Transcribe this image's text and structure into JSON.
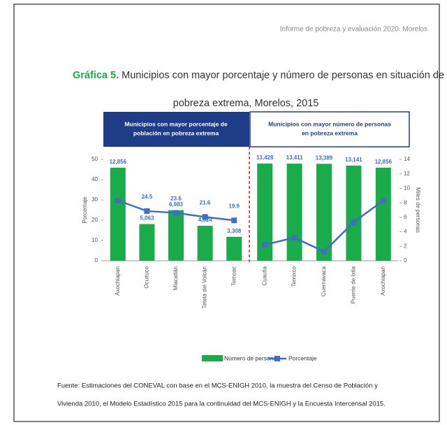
{
  "header": "Informe de pobreza y evaluación 2020. Morelos",
  "title": {
    "label": "Gráfica 5.",
    "lines": [
      "Municipios con mayor porcentaje y número de personas en situación de",
      "pobreza extrema, Morelos, 2015"
    ]
  },
  "source": [
    "Fuente: Estimaciones del CONEVAL con base en el MCS-ENIGH 2010, la muestra del Censo de Población y",
    "Vivienda 2010, el Modelo Estadístico 2015 para la continuidad del MCS-ENIGH y la Encuesta Intercensal 2015."
  ],
  "chart_data": [
    {
      "type": "bar_line",
      "title": [
        "Municipios con mayor porcentaje de",
        "población en pobreza extrema"
      ],
      "categories": [
        "Axochiapan",
        "Ocuituco",
        "Miacatlán",
        "Tetela del Volcán",
        "Temoac"
      ],
      "ylabel": "Porcentaje",
      "ylim": [
        0,
        50
      ],
      "yticks": [
        0,
        10,
        20,
        30,
        40,
        50
      ],
      "y2lim": [
        0,
        14
      ],
      "series": [
        {
          "name": "Número de personas",
          "type": "bar",
          "axis": "y2",
          "color": "#1aab4b",
          "values": [
            12.856,
            5.063,
            6.983,
            4.824,
            3.308
          ],
          "value_labels": [
            "12,856",
            "5,063",
            "6,983",
            "4,824",
            "3,308"
          ]
        },
        {
          "name": "Porcentaje",
          "type": "line",
          "axis": "y",
          "color": "#3e6fc4",
          "values": [
            29.7,
            24.5,
            23.6,
            21.6,
            19.9
          ],
          "value_labels": [
            null,
            "24.5",
            "23.6",
            "21.6",
            "19.9"
          ]
        }
      ]
    },
    {
      "type": "bar_line",
      "title": [
        "Municipios con mayor número de personas",
        "en pobreza extrema"
      ],
      "categories": [
        "Cuautla",
        "Temixco",
        "Cuernavaca",
        "Puente de Ixtla",
        "Axochiapan"
      ],
      "y2label": "Miles de personas",
      "ylim": [
        0,
        50
      ],
      "y2lim": [
        0,
        14
      ],
      "y2ticks": [
        0,
        2,
        4,
        6,
        8,
        10,
        12,
        14
      ],
      "series": [
        {
          "type": "bar",
          "axis": "y2",
          "color": "#1aab4b",
          "values": [
            13.428,
            13.411,
            13.389,
            13.141,
            12.856
          ],
          "value_labels": [
            "13,428",
            "13,411",
            "13,389",
            "13,141",
            "12,856"
          ]
        },
        {
          "type": "line",
          "axis": "y",
          "color": "#3e6fc4",
          "values": [
            7.9,
            11.4,
            4.5,
            19.0,
            29.7
          ]
        }
      ]
    }
  ]
}
